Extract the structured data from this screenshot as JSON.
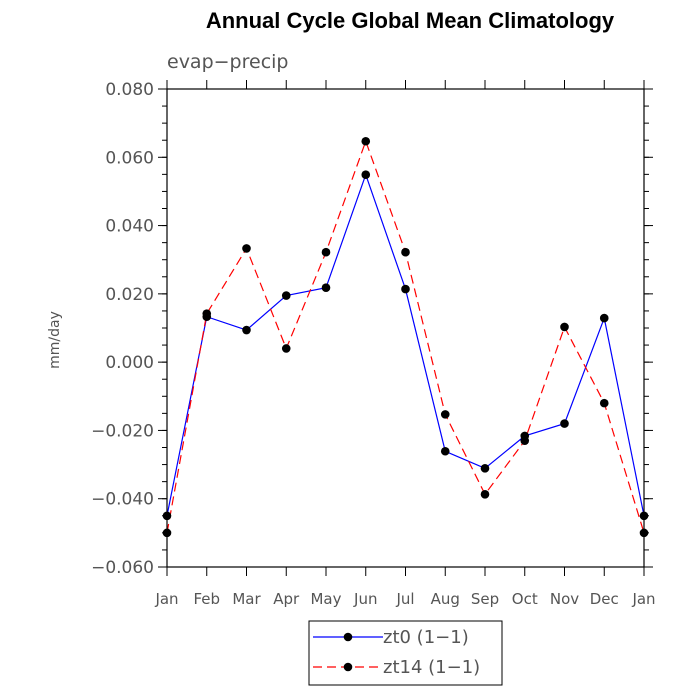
{
  "chart_data": {
    "type": "line",
    "title": "Annual Cycle Global Mean Climatology",
    "subtitle": "evap−precip",
    "xlabel": "",
    "ylabel": "mm/day",
    "categories": [
      "Jan",
      "Feb",
      "Mar",
      "Apr",
      "May",
      "Jun",
      "Jul",
      "Aug",
      "Sep",
      "Oct",
      "Nov",
      "Dec",
      "Jan"
    ],
    "ylim": [
      -0.06,
      0.08
    ],
    "y_ticks": [
      -0.06,
      -0.04,
      -0.02,
      0.0,
      0.02,
      0.04,
      0.06,
      0.08
    ],
    "y_tick_labels": [
      "−0.060",
      "−0.040",
      "−0.020",
      "0.000",
      "0.020",
      "0.040",
      "0.060",
      "0.080"
    ],
    "series": [
      {
        "name": "zt0 (1−1)",
        "color": "#0000ff",
        "dash": "solid",
        "values": [
          -0.045,
          0.0133,
          0.0094,
          0.0195,
          0.0218,
          0.0549,
          0.0214,
          -0.0261,
          -0.0311,
          -0.0216,
          -0.018,
          0.0129,
          -0.045
        ]
      },
      {
        "name": "zt14 (1−1)",
        "color": "#ff0000",
        "dash": "dashed",
        "values": [
          -0.05,
          0.0142,
          0.0333,
          0.004,
          0.0322,
          0.0647,
          0.0322,
          -0.0153,
          -0.0387,
          -0.023,
          0.0103,
          -0.012,
          -0.05
        ]
      }
    ],
    "legend": {
      "placement": "bottom-center",
      "entries": [
        "zt0 (1−1)",
        "zt14 (1−1)"
      ]
    }
  }
}
